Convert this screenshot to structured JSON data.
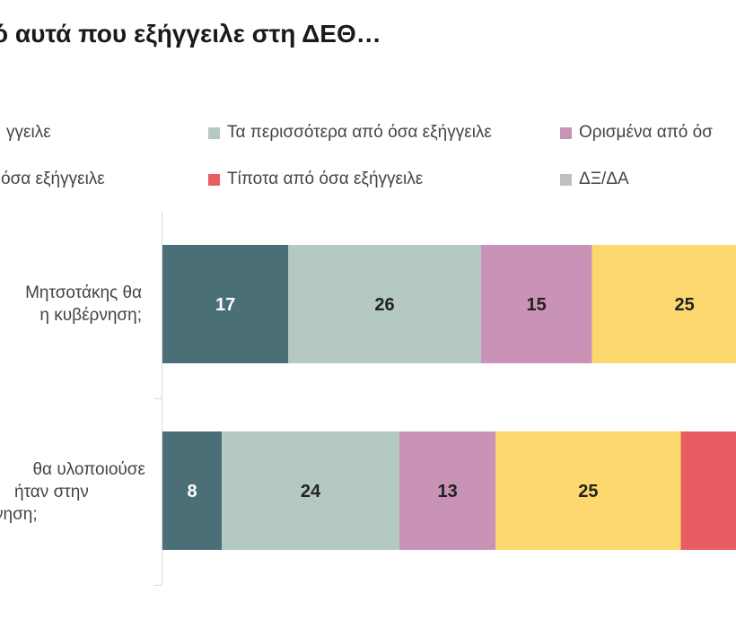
{
  "chart_data": {
    "type": "bar",
    "orientation": "horizontal",
    "stacked": true,
    "title": "ό αυτά που εξήγγειλε στη ΔΕΘ…",
    "categories": [
      [
        "Μητσοτάκης θα",
        "η κυβέρνηση;"
      ],
      [
        "θα υλοποιούσε",
        "ήταν στην",
        "νηση;"
      ]
    ],
    "series": [
      {
        "name": "γγειλε",
        "color": "#4a6f77",
        "values": [
          17,
          8
        ]
      },
      {
        "name": "Τα περισσότερα από όσα εξήγγειλε",
        "color": "#b4c9c1",
        "values": [
          26,
          24
        ]
      },
      {
        "name": "Ορισμένα από όσ",
        "color": "#c993b8",
        "values": [
          15,
          13
        ]
      },
      {
        "name": "όσα εξήγγειλε",
        "color": "#fcd86e",
        "values": [
          25,
          25
        ]
      },
      {
        "name": "Τίποτα από όσα εξήγγειλε",
        "color": "#e85d61",
        "values": [
          null,
          null
        ]
      },
      {
        "name": "ΔΞ/ΔΑ",
        "color": "#bfbfbf",
        "values": [
          null,
          null
        ]
      }
    ],
    "xlim": [
      0,
      100
    ],
    "legend_position": "top"
  }
}
